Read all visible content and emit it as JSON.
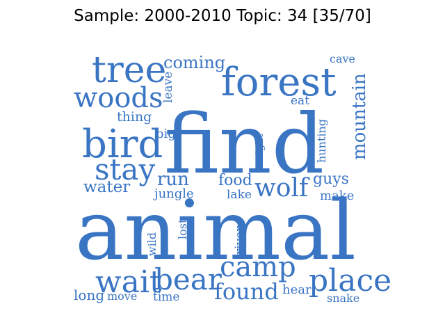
{
  "title": "Sample: 2000-2010 Topic: 34 [35/70]",
  "word_color": "#3a75c4",
  "words": [
    {
      "text": "animal"
    },
    {
      "text": "find"
    },
    {
      "text": "forest"
    },
    {
      "text": "tree"
    },
    {
      "text": "woods"
    },
    {
      "text": "bird"
    },
    {
      "text": "stay"
    },
    {
      "text": "water"
    },
    {
      "text": "coming"
    },
    {
      "text": "leave"
    },
    {
      "text": "thing"
    },
    {
      "text": "big"
    },
    {
      "text": "cave"
    },
    {
      "text": "eat"
    },
    {
      "text": "mountain"
    },
    {
      "text": "hunting"
    },
    {
      "text": "night"
    },
    {
      "text": "run"
    },
    {
      "text": "jungle"
    },
    {
      "text": "food"
    },
    {
      "text": "lake"
    },
    {
      "text": "wolf"
    },
    {
      "text": "guys"
    },
    {
      "text": "make"
    },
    {
      "text": "wild"
    },
    {
      "text": "lost"
    },
    {
      "text": "river"
    },
    {
      "text": "wait"
    },
    {
      "text": "bear"
    },
    {
      "text": "camp"
    },
    {
      "text": "found"
    },
    {
      "text": "place"
    },
    {
      "text": "hear"
    },
    {
      "text": "snake"
    },
    {
      "text": "long"
    },
    {
      "text": "move"
    },
    {
      "text": "time"
    }
  ]
}
